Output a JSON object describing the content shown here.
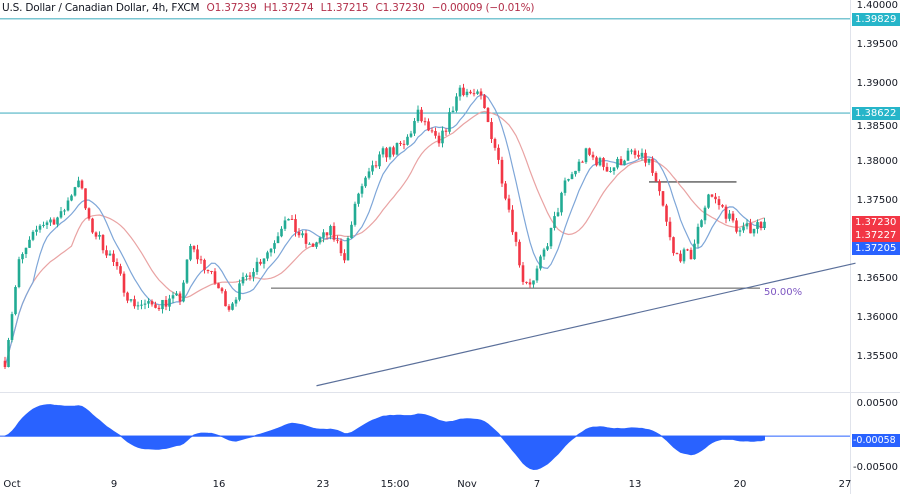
{
  "legend": {
    "symbol": "U.S. Dollar / Canadian Dollar, 4h, FXCM",
    "open": "O1.37239",
    "high": "H1.37274",
    "low": "L1.37215",
    "close": "C1.37230",
    "change": "−0.00009 (−0.01%)"
  },
  "colors": {
    "up": "#22ab94",
    "down": "#f23645",
    "fast_ma": "#7ea6d8",
    "slow_ma": "#e9a3a3",
    "level": "#4fb3c4",
    "trend": "#5a6f9a",
    "oscillator": "#2962ff",
    "fib": "#7e57c2"
  },
  "price_axis": {
    "ticks": [
      "1.40000",
      "1.39500",
      "1.39000",
      "1.38500",
      "1.38000",
      "1.37500",
      "1.36500",
      "1.36000",
      "1.35500"
    ],
    "range": [
      1.3505,
      1.4007
    ]
  },
  "price_tags": [
    {
      "label": "1.39829",
      "value": 1.39829,
      "color": "#26b5c9"
    },
    {
      "label": "1.38622",
      "value": 1.38622,
      "color": "#26b5c9"
    },
    {
      "label": "1.37230",
      "value": 1.3723,
      "color": "#f23645"
    },
    {
      "label": "1.37227",
      "value": 1.37227,
      "color": "#f23645"
    },
    {
      "label": "1.37205",
      "value": 1.37205,
      "color": "#2962ff"
    }
  ],
  "osc_axis": {
    "ticks": [
      "0.00500",
      "-0.00500"
    ],
    "current": "-0.00058"
  },
  "time_axis": [
    "Oct",
    "9",
    "16",
    "23",
    "15:00",
    "Nov",
    "7",
    "13",
    "20",
    "27"
  ],
  "fib_label": "50.00%",
  "chart_data": {
    "type": "candlestick",
    "timeframe": "4h",
    "waypoints": [
      [
        "2023-10-02T00:00",
        1.3545
      ],
      [
        "2023-10-02T16:00",
        1.367
      ],
      [
        "2023-10-03T16:00",
        1.372
      ],
      [
        "2023-10-04T16:00",
        1.373
      ],
      [
        "2023-10-05T12:00",
        1.378
      ],
      [
        "2023-10-06T00:00",
        1.372
      ],
      [
        "2023-10-09T00:00",
        1.368
      ],
      [
        "2023-10-10T00:00",
        1.362
      ],
      [
        "2023-10-10T20:00",
        1.3615
      ],
      [
        "2023-10-12T08:00",
        1.3625
      ],
      [
        "2023-10-12T20:00",
        1.369
      ],
      [
        "2023-10-13T16:00",
        1.366
      ],
      [
        "2023-10-16T16:00",
        1.3615
      ],
      [
        "2023-10-17T16:00",
        1.366
      ],
      [
        "2023-10-18T16:00",
        1.369
      ],
      [
        "2023-10-19T08:00",
        1.373
      ],
      [
        "2023-10-20T12:00",
        1.369
      ],
      [
        "2023-10-23T12:00",
        1.371
      ],
      [
        "2023-10-24T04:00",
        1.368
      ],
      [
        "2023-10-24T20:00",
        1.376
      ],
      [
        "2023-10-26T00:00",
        1.381
      ],
      [
        "2023-10-27T00:00",
        1.382
      ],
      [
        "2023-10-27T16:00",
        1.386
      ],
      [
        "2023-10-30T16:00",
        1.382
      ],
      [
        "2023-10-31T16:00",
        1.3895
      ],
      [
        "2023-11-01T16:00",
        1.388
      ],
      [
        "2023-11-02T08:00",
        1.382
      ],
      [
        "2023-11-03T00:00",
        1.374
      ],
      [
        "2023-11-03T16:00",
        1.365
      ],
      [
        "2023-11-06T04:00",
        1.3645
      ],
      [
        "2023-11-07T00:00",
        1.371
      ],
      [
        "2023-11-07T16:00",
        1.377
      ],
      [
        "2023-11-08T16:00",
        1.381
      ],
      [
        "2023-11-09T20:00",
        1.379
      ],
      [
        "2023-11-10T16:00",
        1.381
      ],
      [
        "2023-11-13T16:00",
        1.38
      ],
      [
        "2023-11-14T08:00",
        1.374
      ],
      [
        "2023-11-14T20:00",
        1.368
      ],
      [
        "2023-11-15T16:00",
        1.368
      ],
      [
        "2023-11-16T12:00",
        1.376
      ],
      [
        "2023-11-17T04:00",
        1.374
      ],
      [
        "2023-11-20T00:00",
        1.371
      ],
      [
        "2023-11-21T04:00",
        1.3723
      ]
    ],
    "horizontal_levels": [
      1.39829,
      1.38622
    ],
    "support_line": {
      "price": 1.3638,
      "from": "2023-10-18T16:00",
      "label": "50.00%"
    },
    "resistance_segment": {
      "price": 1.3774,
      "from": "2023-11-13T16:00",
      "to": "2023-11-17T20:00"
    },
    "trend_line": {
      "from": [
        "2023-10-20T20:00",
        1.3513
      ],
      "to": [
        "2023-11-27T12:00",
        1.367
      ]
    },
    "moving_averages": [
      "fast",
      "slow"
    ],
    "oscillator": {
      "range": [
        -0.0065,
        0.0067
      ],
      "last": -0.00058
    }
  }
}
